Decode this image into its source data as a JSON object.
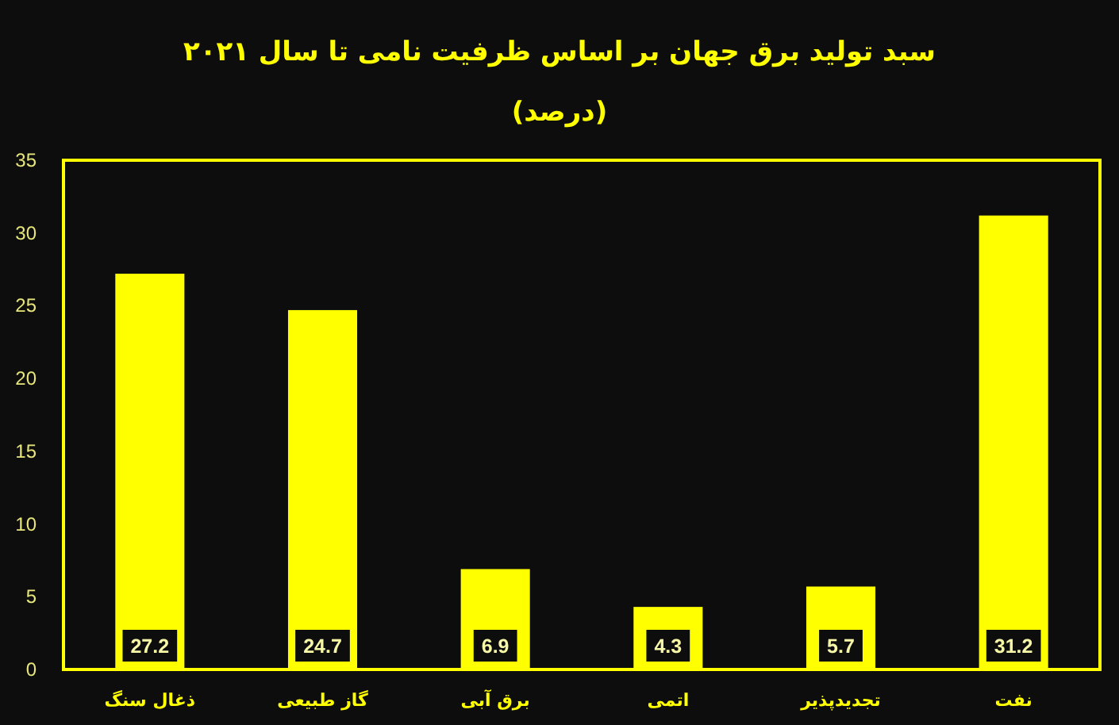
{
  "chart_data": {
    "type": "bar",
    "title": "سبد تولید برق جهان بر اساس ظرفیت نامی تا سال ۲۰۲۱",
    "subtitle": "(درصد)",
    "categories": [
      "ذغال سنگ",
      "گاز طبیعی",
      "برق آبی",
      "اتمی",
      "تجدیدپذیر",
      "نفت"
    ],
    "values": [
      27.2,
      24.7,
      6.9,
      4.3,
      5.7,
      31.2
    ],
    "color": "#ffff00",
    "ylim": [
      0,
      35
    ],
    "yticks": [
      0,
      5,
      10,
      15,
      20,
      25,
      30,
      35
    ],
    "data_labels": true
  }
}
